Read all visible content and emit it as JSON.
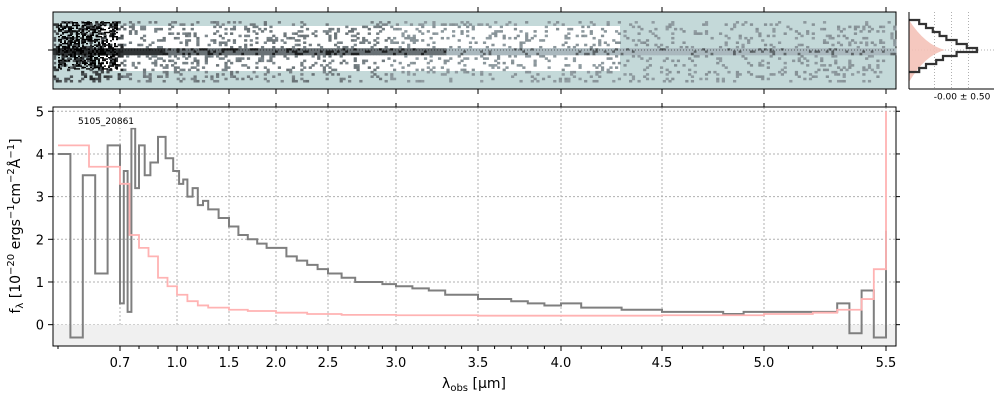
{
  "chart_data": {
    "type": "line",
    "object_label": "5105_20861",
    "xlabel_main": "λ",
    "xlabel_sub": "obs",
    "xlabel_unit": "[μm]",
    "ylabel_main": "f",
    "ylabel_sub": "λ",
    "ylabel_rest": "[10",
    "ylabel_exp1": "−20",
    "ylabel_mid": "ergs",
    "ylabel_exp2": "−1",
    "ylabel_cm": "cm",
    "ylabel_exp3": "−2",
    "ylabel_ang": "Å",
    "ylabel_exp4": "−1",
    "ylabel_end": "]",
    "x_ticks": [
      "0.7",
      "1.0",
      "1.5",
      "2.0",
      "2.5",
      "3.0",
      "3.5",
      "4.0",
      "4.5",
      "5.0",
      "5.5"
    ],
    "y_ticks": [
      "0",
      "1",
      "2",
      "3",
      "4",
      "5"
    ],
    "ylim": [
      -0.5,
      5.1
    ],
    "grid": true,
    "hist_label": "-0.00 ± 0.50",
    "series": [
      {
        "color": "#7f7f7f",
        "x": [
          0.6,
          0.62,
          0.64,
          0.66,
          0.68,
          0.7,
          0.72,
          0.74,
          0.76,
          0.78,
          0.8,
          0.83,
          0.86,
          0.9,
          0.94,
          0.98,
          1.02,
          1.06,
          1.1,
          1.15,
          1.2,
          1.25,
          1.3,
          1.4,
          1.5,
          1.6,
          1.7,
          1.8,
          1.9,
          2.0,
          2.1,
          2.2,
          2.3,
          2.4,
          2.5,
          2.6,
          2.7,
          2.8,
          2.9,
          3.0,
          3.1,
          3.2,
          3.3,
          3.4,
          3.5,
          3.6,
          3.7,
          3.8,
          3.9,
          4.0,
          4.1,
          4.2,
          4.3,
          4.4,
          4.5,
          4.6,
          4.7,
          4.8,
          4.9,
          5.0,
          5.1,
          5.2,
          5.3,
          5.35,
          5.4,
          5.45,
          5.5
        ],
        "y": [
          4.0,
          -0.3,
          3.5,
          1.2,
          4.2,
          0.5,
          3.6,
          0.3,
          4.6,
          3.2,
          4.2,
          3.5,
          3.8,
          4.4,
          3.9,
          3.6,
          3.3,
          3.4,
          3.0,
          3.2,
          2.8,
          2.9,
          2.7,
          2.5,
          2.3,
          2.1,
          2.0,
          1.9,
          1.8,
          1.8,
          1.6,
          1.5,
          1.4,
          1.3,
          1.2,
          1.1,
          1.0,
          1.0,
          0.95,
          0.9,
          0.85,
          0.8,
          0.7,
          0.7,
          0.6,
          0.6,
          0.55,
          0.5,
          0.45,
          0.5,
          0.4,
          0.4,
          0.35,
          0.35,
          0.3,
          0.3,
          0.3,
          0.25,
          0.3,
          0.3,
          0.3,
          0.3,
          0.5,
          -0.2,
          0.8,
          -0.3,
          2.2
        ]
      },
      {
        "color": "#ffb3b3",
        "x": [
          0.6,
          0.65,
          0.7,
          0.75,
          0.8,
          0.85,
          0.9,
          0.95,
          1.0,
          1.1,
          1.2,
          1.3,
          1.5,
          1.7,
          2.0,
          2.3,
          2.6,
          3.0,
          3.5,
          4.0,
          4.5,
          5.0,
          5.2,
          5.3,
          5.4,
          5.45,
          5.5
        ],
        "y": [
          4.2,
          3.7,
          3.3,
          2.1,
          1.8,
          1.6,
          1.1,
          0.9,
          0.7,
          0.55,
          0.45,
          0.4,
          0.35,
          0.32,
          0.28,
          0.25,
          0.23,
          0.22,
          0.21,
          0.21,
          0.22,
          0.25,
          0.28,
          0.35,
          0.6,
          1.3,
          5.0
        ]
      }
    ]
  }
}
